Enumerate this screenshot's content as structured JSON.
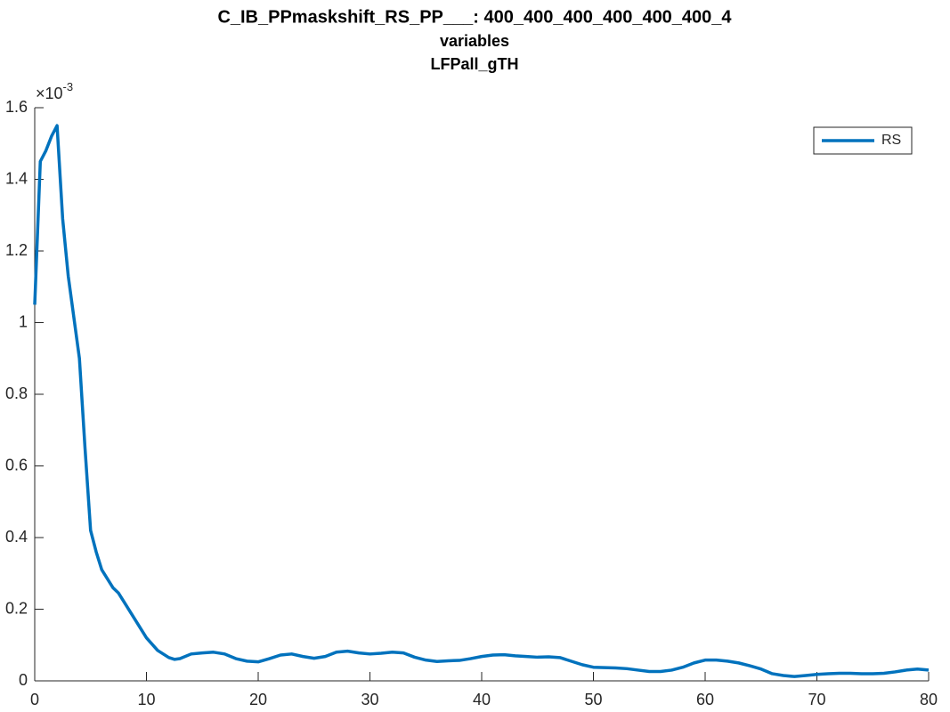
{
  "chart_data": {
    "type": "line",
    "title": "C_IB_PPmaskshift_RS_PP___: 400_400_400_400_400_400_4",
    "subtitle": "variables",
    "subtitle2": "LFPall_gTH",
    "y_multiplier": {
      "base": "×10",
      "exponent": "-3"
    },
    "x": [
      0,
      0.5,
      1,
      1.5,
      2,
      2.5,
      3,
      4,
      4.5,
      5,
      5.5,
      6,
      7,
      7.5,
      8,
      9,
      10,
      11,
      12,
      12.5,
      13,
      14,
      15,
      16,
      17,
      18,
      19,
      20,
      21,
      22,
      23,
      24,
      25,
      26,
      27,
      28,
      29,
      30,
      31,
      32,
      33,
      34,
      35,
      36,
      37,
      38,
      39,
      40,
      41,
      42,
      43,
      44,
      45,
      46,
      47,
      48,
      49,
      50,
      51,
      52,
      53,
      54,
      55,
      56,
      57,
      58,
      59,
      60,
      61,
      62,
      63,
      64,
      65,
      66,
      67,
      68,
      69,
      70,
      71,
      72,
      73,
      74,
      75,
      76,
      77,
      78,
      79,
      80
    ],
    "series": [
      {
        "name": "RS",
        "color": "#0072bd",
        "values": [
          1.05,
          1.45,
          1.48,
          1.52,
          1.55,
          1.29,
          1.13,
          0.9,
          0.65,
          0.42,
          0.36,
          0.31,
          0.26,
          0.245,
          0.22,
          0.17,
          0.12,
          0.085,
          0.065,
          0.06,
          0.062,
          0.075,
          0.078,
          0.08,
          0.075,
          0.062,
          0.055,
          0.053,
          0.062,
          0.072,
          0.075,
          0.068,
          0.063,
          0.068,
          0.08,
          0.083,
          0.078,
          0.075,
          0.077,
          0.08,
          0.078,
          0.066,
          0.058,
          0.054,
          0.056,
          0.057,
          0.062,
          0.068,
          0.072,
          0.073,
          0.07,
          0.068,
          0.066,
          0.067,
          0.065,
          0.055,
          0.045,
          0.038,
          0.037,
          0.036,
          0.034,
          0.03,
          0.026,
          0.026,
          0.03,
          0.038,
          0.05,
          0.058,
          0.058,
          0.055,
          0.05,
          0.042,
          0.033,
          0.02,
          0.015,
          0.012,
          0.015,
          0.018,
          0.02,
          0.021,
          0.021,
          0.02,
          0.02,
          0.021,
          0.025,
          0.03,
          0.033,
          0.03
        ]
      }
    ],
    "xlim": [
      0,
      80
    ],
    "xticks": [
      0,
      10,
      20,
      30,
      40,
      50,
      60,
      70,
      80
    ],
    "ylim": [
      0,
      1.6
    ],
    "yticks": [
      0,
      0.2,
      0.4,
      0.6,
      0.8,
      1,
      1.2,
      1.4,
      1.6
    ],
    "legend": "upper right",
    "grid": false
  }
}
